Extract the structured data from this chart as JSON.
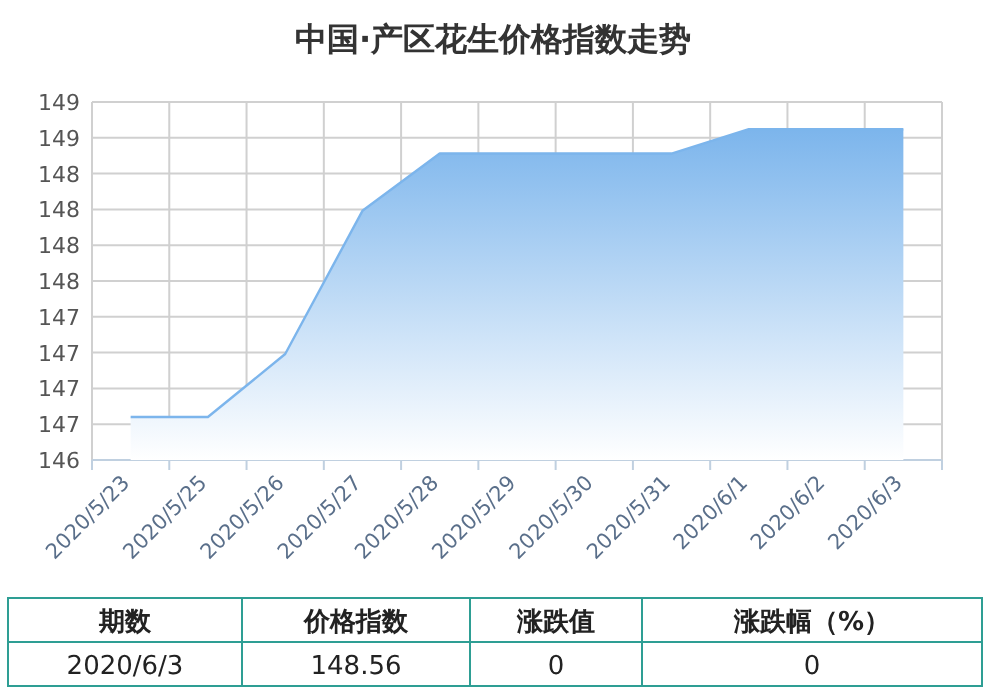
{
  "chart_data": {
    "type": "area",
    "title": "中国·产区花生价格指数走势",
    "categories": [
      "2020/5/23",
      "2020/5/25",
      "2020/5/26",
      "2020/5/27",
      "2020/5/28",
      "2020/5/29",
      "2020/5/30",
      "2020/5/31",
      "2020/6/1",
      "2020/6/2",
      "2020/6/3"
    ],
    "series": [
      {
        "color": "#7cb5ec",
        "values": [
          146.55,
          146.55,
          146.99,
          147.99,
          148.39,
          148.39,
          148.39,
          148.39,
          148.56,
          148.56,
          148.56
        ]
      }
    ],
    "ylim": [
      146.25,
      148.75
    ],
    "yticks": [
      {
        "value": 146.25,
        "label": "146"
      },
      {
        "value": 146.5,
        "label": "147"
      },
      {
        "value": 146.75,
        "label": "147"
      },
      {
        "value": 147,
        "label": "147"
      },
      {
        "value": 147.25,
        "label": "147"
      },
      {
        "value": 147.5,
        "label": "148"
      },
      {
        "value": 147.75,
        "label": "148"
      },
      {
        "value": 148,
        "label": "148"
      },
      {
        "value": 148.25,
        "label": "148"
      },
      {
        "value": 148.5,
        "label": "149"
      },
      {
        "value": 148.75,
        "label": "149"
      }
    ],
    "grid": true,
    "annotations": [
      "期数",
      "价格指数",
      "涨跌值",
      "涨跌幅（%）",
      "2020/6/3",
      "148.56",
      "0",
      "0"
    ]
  }
}
